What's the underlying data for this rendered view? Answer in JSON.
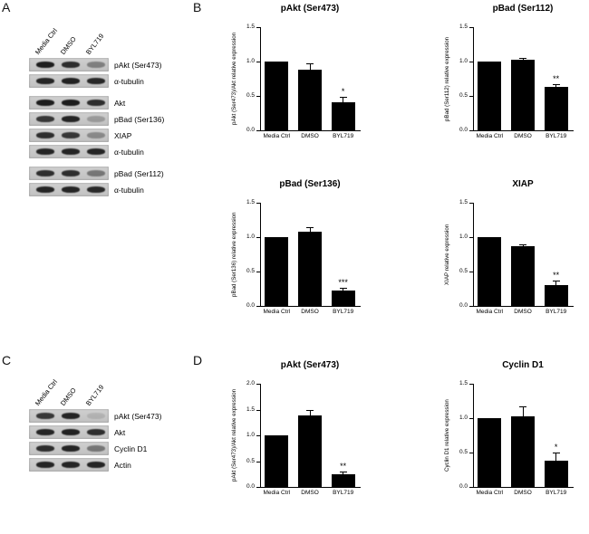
{
  "panels": {
    "A": {
      "label": "A"
    },
    "B": {
      "label": "B"
    },
    "C": {
      "label": "C"
    },
    "D": {
      "label": "D"
    }
  },
  "blots": {
    "A": {
      "lanes": [
        "Media Ctrl",
        "DMSO",
        "BYL719"
      ],
      "groups": [
        {
          "rows": [
            {
              "label": "pAkt (Ser473)",
              "bands": [
                0.95,
                0.85,
                0.4
              ]
            },
            {
              "label": "α-tubulin",
              "bands": [
                0.9,
                0.92,
                0.88
              ]
            }
          ]
        },
        {
          "rows": [
            {
              "label": "Akt",
              "bands": [
                0.95,
                0.95,
                0.85
              ]
            },
            {
              "label": "pBad (Ser136)",
              "bands": [
                0.8,
                0.9,
                0.25
              ]
            },
            {
              "label": "XIAP",
              "bands": [
                0.85,
                0.8,
                0.35
              ]
            },
            {
              "label": "α-tubulin",
              "bands": [
                0.9,
                0.9,
                0.9
              ]
            }
          ]
        },
        {
          "rows": [
            {
              "label": "pBad (Ser112)",
              "bands": [
                0.85,
                0.85,
                0.45
              ]
            },
            {
              "label": "α-tubulin",
              "bands": [
                0.9,
                0.9,
                0.88
              ]
            }
          ]
        }
      ]
    },
    "C": {
      "lanes": [
        "Media Ctrl",
        "DMSO",
        "BYL719"
      ],
      "groups": [
        {
          "rows": [
            {
              "label": "pAkt (Ser473)",
              "bands": [
                0.8,
                0.9,
                0.12
              ]
            },
            {
              "label": "Akt",
              "bands": [
                0.9,
                0.92,
                0.85
              ]
            },
            {
              "label": "Cyclin D1",
              "bands": [
                0.85,
                0.9,
                0.45
              ]
            },
            {
              "label": "Actin",
              "bands": [
                0.9,
                0.9,
                0.9
              ]
            }
          ]
        }
      ]
    }
  },
  "chart_data": [
    {
      "type": "bar",
      "title": "pAkt (Ser473)",
      "ylabel": "pAkt (Ser473)/Akt relative expression",
      "categories": [
        "Media Ctrl",
        "DMSO",
        "BYL719"
      ],
      "values": [
        1.0,
        0.88,
        0.41
      ],
      "errors": [
        0,
        0.1,
        0.08
      ],
      "significance": [
        "",
        "",
        "*"
      ],
      "ylim": [
        0,
        1.5
      ],
      "yticks": [
        0,
        0.5,
        1,
        1.5
      ]
    },
    {
      "type": "bar",
      "title": "pBad (Ser112)",
      "ylabel": "pBad (Ser112) relative expression",
      "categories": [
        "Media Ctrl",
        "DMSO",
        "BYL719"
      ],
      "values": [
        1.0,
        1.02,
        0.63
      ],
      "errors": [
        0,
        0.03,
        0.04
      ],
      "significance": [
        "",
        "",
        "**"
      ],
      "ylim": [
        0,
        1.5
      ],
      "yticks": [
        0,
        0.5,
        1,
        1.5
      ]
    },
    {
      "type": "bar",
      "title": "pBad (Ser136)",
      "ylabel": "pBad (Ser136) relative expression",
      "categories": [
        "Media Ctrl",
        "DMSO",
        "BYL719"
      ],
      "values": [
        1.0,
        1.08,
        0.23
      ],
      "errors": [
        0,
        0.06,
        0.03
      ],
      "significance": [
        "",
        "",
        "***"
      ],
      "ylim": [
        0,
        1.5
      ],
      "yticks": [
        0,
        0.5,
        1,
        1.5
      ]
    },
    {
      "type": "bar",
      "title": "XIAP",
      "ylabel": "XIAP relative expression",
      "categories": [
        "Media Ctrl",
        "DMSO",
        "BYL719"
      ],
      "values": [
        1.0,
        0.87,
        0.3
      ],
      "errors": [
        0,
        0.03,
        0.07
      ],
      "significance": [
        "",
        "",
        "**"
      ],
      "ylim": [
        0,
        1.5
      ],
      "yticks": [
        0,
        0.5,
        1,
        1.5
      ]
    },
    {
      "type": "bar",
      "title": "pAkt (Ser473)",
      "ylabel": "pAkt (Ser473)/Akt relative expression",
      "categories": [
        "Media Ctrl",
        "DMSO",
        "BYL719"
      ],
      "values": [
        1.0,
        1.38,
        0.25
      ],
      "errors": [
        0,
        0.12,
        0.05
      ],
      "significance": [
        "",
        "",
        "**"
      ],
      "ylim": [
        0,
        2.0
      ],
      "yticks": [
        0,
        0.5,
        1,
        1.5,
        2
      ]
    },
    {
      "type": "bar",
      "title": "Cyclin D1",
      "ylabel": "Cyclin D1 relative expression",
      "categories": [
        "Media Ctrl",
        "DMSO",
        "BYL719"
      ],
      "values": [
        1.0,
        1.03,
        0.38
      ],
      "errors": [
        0,
        0.14,
        0.12
      ],
      "significance": [
        "",
        "",
        "*"
      ],
      "ylim": [
        0,
        1.5
      ],
      "yticks": [
        0,
        0.5,
        1,
        1.5
      ]
    }
  ]
}
